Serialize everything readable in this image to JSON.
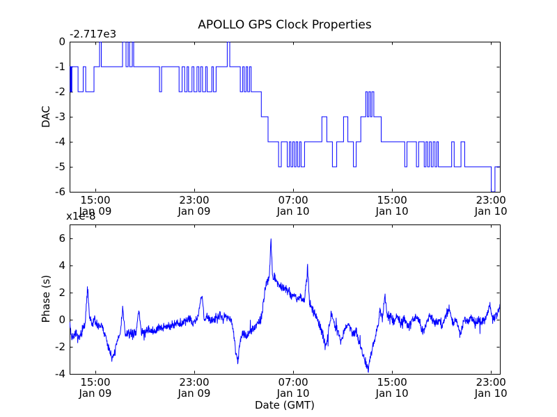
{
  "figure": {
    "background": "#ffffff",
    "axes_color": "#000000"
  },
  "chart_data": {
    "figure_title": "APOLLO GPS Clock Properties",
    "x_axis": {
      "label": "Date (GMT)",
      "range_hours": [
        0,
        34.8
      ],
      "ticks": [
        {
          "hour": 2.08,
          "time": "15:00",
          "date": "Jan 09"
        },
        {
          "hour": 10.08,
          "time": "23:00",
          "date": "Jan 09"
        },
        {
          "hour": 18.08,
          "time": "07:00",
          "date": "Jan 10"
        },
        {
          "hour": 26.08,
          "time": "15:00",
          "date": "Jan 10"
        },
        {
          "hour": 34.08,
          "time": "23:00",
          "date": "Jan 10"
        }
      ]
    },
    "charts": [
      {
        "type": "line",
        "style": "step",
        "name": "dac",
        "ylabel": "DAC",
        "y_offset_label": "-2.717e3",
        "ylim": [
          -6,
          0
        ],
        "yticks": [
          0,
          -1,
          -2,
          -3,
          -4,
          -5,
          -6
        ],
        "line_color": "#0000ff",
        "steps": [
          [
            0.0,
            -1
          ],
          [
            0.05,
            -2
          ],
          [
            0.1,
            -1
          ],
          [
            0.14,
            -2
          ],
          [
            0.18,
            -1
          ],
          [
            0.68,
            -2
          ],
          [
            1.1,
            -1
          ],
          [
            1.3,
            -2
          ],
          [
            1.97,
            -1
          ],
          [
            2.42,
            0
          ],
          [
            2.56,
            -1
          ],
          [
            4.28,
            0
          ],
          [
            4.56,
            -1
          ],
          [
            4.73,
            0
          ],
          [
            4.85,
            -1
          ],
          [
            5.07,
            0
          ],
          [
            5.18,
            -1
          ],
          [
            7.27,
            -2
          ],
          [
            7.44,
            -1
          ],
          [
            8.85,
            -2
          ],
          [
            9.1,
            -1
          ],
          [
            9.3,
            -2
          ],
          [
            9.5,
            -1
          ],
          [
            9.62,
            -2
          ],
          [
            9.9,
            -1
          ],
          [
            10.05,
            -2
          ],
          [
            10.3,
            -1
          ],
          [
            10.45,
            -2
          ],
          [
            10.6,
            -1
          ],
          [
            10.75,
            -2
          ],
          [
            11.0,
            -1
          ],
          [
            11.12,
            -2
          ],
          [
            11.5,
            -1
          ],
          [
            11.62,
            -2
          ],
          [
            11.85,
            -1
          ],
          [
            12.75,
            0
          ],
          [
            12.95,
            -1
          ],
          [
            13.8,
            -2
          ],
          [
            14.0,
            -1
          ],
          [
            14.12,
            -2
          ],
          [
            14.28,
            -1
          ],
          [
            14.4,
            -2
          ],
          [
            14.55,
            -1
          ],
          [
            14.68,
            -2
          ],
          [
            15.5,
            -3
          ],
          [
            16.05,
            -4
          ],
          [
            16.9,
            -5
          ],
          [
            17.12,
            -4
          ],
          [
            17.6,
            -5
          ],
          [
            17.78,
            -4
          ],
          [
            17.9,
            -5
          ],
          [
            18.05,
            -4
          ],
          [
            18.18,
            -5
          ],
          [
            18.32,
            -4
          ],
          [
            18.45,
            -5
          ],
          [
            18.6,
            -4
          ],
          [
            18.72,
            -5
          ],
          [
            19.0,
            -4
          ],
          [
            20.4,
            -3
          ],
          [
            20.8,
            -4
          ],
          [
            21.25,
            -5
          ],
          [
            21.6,
            -4
          ],
          [
            22.15,
            -3
          ],
          [
            22.5,
            -4
          ],
          [
            22.95,
            -5
          ],
          [
            23.18,
            -4
          ],
          [
            23.55,
            -3
          ],
          [
            23.95,
            -2
          ],
          [
            24.08,
            -3
          ],
          [
            24.2,
            -2
          ],
          [
            24.33,
            -3
          ],
          [
            24.45,
            -2
          ],
          [
            24.6,
            -3
          ],
          [
            25.2,
            -4
          ],
          [
            27.1,
            -5
          ],
          [
            27.28,
            -4
          ],
          [
            28.05,
            -5
          ],
          [
            28.23,
            -4
          ],
          [
            28.68,
            -5
          ],
          [
            28.82,
            -4
          ],
          [
            28.95,
            -5
          ],
          [
            29.1,
            -4
          ],
          [
            29.25,
            -5
          ],
          [
            29.4,
            -4
          ],
          [
            29.55,
            -5
          ],
          [
            29.7,
            -4
          ],
          [
            29.82,
            -5
          ],
          [
            30.9,
            -4
          ],
          [
            31.1,
            -5
          ],
          [
            31.65,
            -4
          ],
          [
            31.95,
            -5
          ],
          [
            34.1,
            -6
          ],
          [
            34.4,
            -5
          ]
        ]
      },
      {
        "type": "line",
        "style": "noisy",
        "name": "phase",
        "ylabel": "Phase (s)",
        "y_multiplier_label": "x1e-8",
        "xlabel": "Date (GMT)",
        "ylim": [
          -4,
          7
        ],
        "yticks": [
          6,
          4,
          2,
          0,
          -2,
          -4
        ],
        "line_color": "#0000ff",
        "noise_amp": 0.28,
        "points": [
          [
            0.0,
            -0.1
          ],
          [
            0.15,
            -1.3
          ],
          [
            0.5,
            -1.1
          ],
          [
            0.8,
            -1.4
          ],
          [
            1.0,
            -0.8
          ],
          [
            1.25,
            -0.4
          ],
          [
            1.45,
            2.35
          ],
          [
            1.6,
            0.2
          ],
          [
            1.8,
            -0.4
          ],
          [
            2.0,
            0.1
          ],
          [
            2.3,
            -0.6
          ],
          [
            2.6,
            -0.4
          ],
          [
            2.9,
            -1.3
          ],
          [
            3.1,
            -1.9
          ],
          [
            3.3,
            -2.4
          ],
          [
            3.5,
            -2.9
          ],
          [
            3.7,
            -2.2
          ],
          [
            3.9,
            -1.5
          ],
          [
            4.1,
            -1.0
          ],
          [
            4.3,
            0.9
          ],
          [
            4.5,
            -1.2
          ],
          [
            4.8,
            -1.0
          ],
          [
            5.1,
            -1.1
          ],
          [
            5.4,
            -0.8
          ],
          [
            5.6,
            0.7
          ],
          [
            5.8,
            -0.9
          ],
          [
            6.1,
            -1.0
          ],
          [
            6.4,
            -0.7
          ],
          [
            6.7,
            -0.9
          ],
          [
            7.0,
            -0.8
          ],
          [
            7.3,
            -0.6
          ],
          [
            7.6,
            -0.5
          ],
          [
            7.9,
            -0.55
          ],
          [
            8.2,
            -0.4
          ],
          [
            8.5,
            -0.3
          ],
          [
            8.8,
            -0.25
          ],
          [
            9.1,
            -0.4
          ],
          [
            9.4,
            -0.1
          ],
          [
            9.7,
            0.1
          ],
          [
            10.0,
            -0.2
          ],
          [
            10.3,
            0.0
          ],
          [
            10.7,
            1.8
          ],
          [
            10.9,
            0.0
          ],
          [
            11.2,
            0.2
          ],
          [
            11.5,
            -0.1
          ],
          [
            11.8,
            0.15
          ],
          [
            12.1,
            0.3
          ],
          [
            12.4,
            0.05
          ],
          [
            12.7,
            0.3
          ],
          [
            13.0,
            0.1
          ],
          [
            13.2,
            -0.5
          ],
          [
            13.45,
            -2.4
          ],
          [
            13.6,
            -3.0
          ],
          [
            13.8,
            -1.6
          ],
          [
            14.0,
            -1.0
          ],
          [
            14.3,
            -1.3
          ],
          [
            14.6,
            -0.9
          ],
          [
            14.9,
            -0.6
          ],
          [
            15.2,
            -0.3
          ],
          [
            15.45,
            0.0
          ],
          [
            15.6,
            0.6
          ],
          [
            15.8,
            2.2
          ],
          [
            16.0,
            2.9
          ],
          [
            16.15,
            3.1
          ],
          [
            16.28,
            6.1
          ],
          [
            16.4,
            3.4
          ],
          [
            16.6,
            3.0
          ],
          [
            16.8,
            2.8
          ],
          [
            17.0,
            2.5
          ],
          [
            17.3,
            2.3
          ],
          [
            17.6,
            2.2
          ],
          [
            17.9,
            1.9
          ],
          [
            18.2,
            1.8
          ],
          [
            18.5,
            1.5
          ],
          [
            18.8,
            1.6
          ],
          [
            19.0,
            1.4
          ],
          [
            19.25,
            3.85
          ],
          [
            19.4,
            1.2
          ],
          [
            19.6,
            0.8
          ],
          [
            19.9,
            0.3
          ],
          [
            20.2,
            -0.4
          ],
          [
            20.5,
            -1.2
          ],
          [
            20.7,
            -2.0
          ],
          [
            20.9,
            -1.0
          ],
          [
            21.15,
            0.5
          ],
          [
            21.4,
            -0.2
          ],
          [
            21.7,
            -1.0
          ],
          [
            21.95,
            -1.6
          ],
          [
            22.2,
            -0.9
          ],
          [
            22.45,
            -0.3
          ],
          [
            22.7,
            -0.6
          ],
          [
            22.95,
            -1.2
          ],
          [
            23.15,
            -0.7
          ],
          [
            23.4,
            -1.6
          ],
          [
            23.7,
            -2.4
          ],
          [
            23.95,
            -3.2
          ],
          [
            24.15,
            -3.6
          ],
          [
            24.35,
            -2.7
          ],
          [
            24.55,
            -1.9
          ],
          [
            24.75,
            -1.1
          ],
          [
            24.95,
            -0.4
          ],
          [
            25.1,
            0.7
          ],
          [
            25.3,
            0.1
          ],
          [
            25.5,
            1.7
          ],
          [
            25.7,
            0.2
          ],
          [
            25.95,
            0.4
          ],
          [
            26.2,
            -0.2
          ],
          [
            26.5,
            0.3
          ],
          [
            26.8,
            -0.3
          ],
          [
            27.1,
            0.1
          ],
          [
            27.4,
            -0.6
          ],
          [
            27.7,
            0.0
          ],
          [
            28.0,
            0.2
          ],
          [
            28.3,
            -0.2
          ],
          [
            28.6,
            -0.9
          ],
          [
            28.9,
            0.0
          ],
          [
            29.2,
            0.2
          ],
          [
            29.5,
            -0.3
          ],
          [
            29.8,
            0.0
          ],
          [
            30.1,
            -0.4
          ],
          [
            30.4,
            0.1
          ],
          [
            30.7,
            0.8
          ],
          [
            31.0,
            -0.2
          ],
          [
            31.3,
            0.0
          ],
          [
            31.6,
            -1.2
          ],
          [
            31.9,
            0.1
          ],
          [
            32.2,
            -0.2
          ],
          [
            32.5,
            0.3
          ],
          [
            32.8,
            -0.3
          ],
          [
            33.1,
            0.0
          ],
          [
            33.4,
            -0.25
          ],
          [
            33.7,
            0.2
          ],
          [
            34.0,
            1.1
          ],
          [
            34.2,
            0.0
          ],
          [
            34.5,
            0.4
          ],
          [
            34.8,
            0.8
          ]
        ]
      }
    ]
  }
}
